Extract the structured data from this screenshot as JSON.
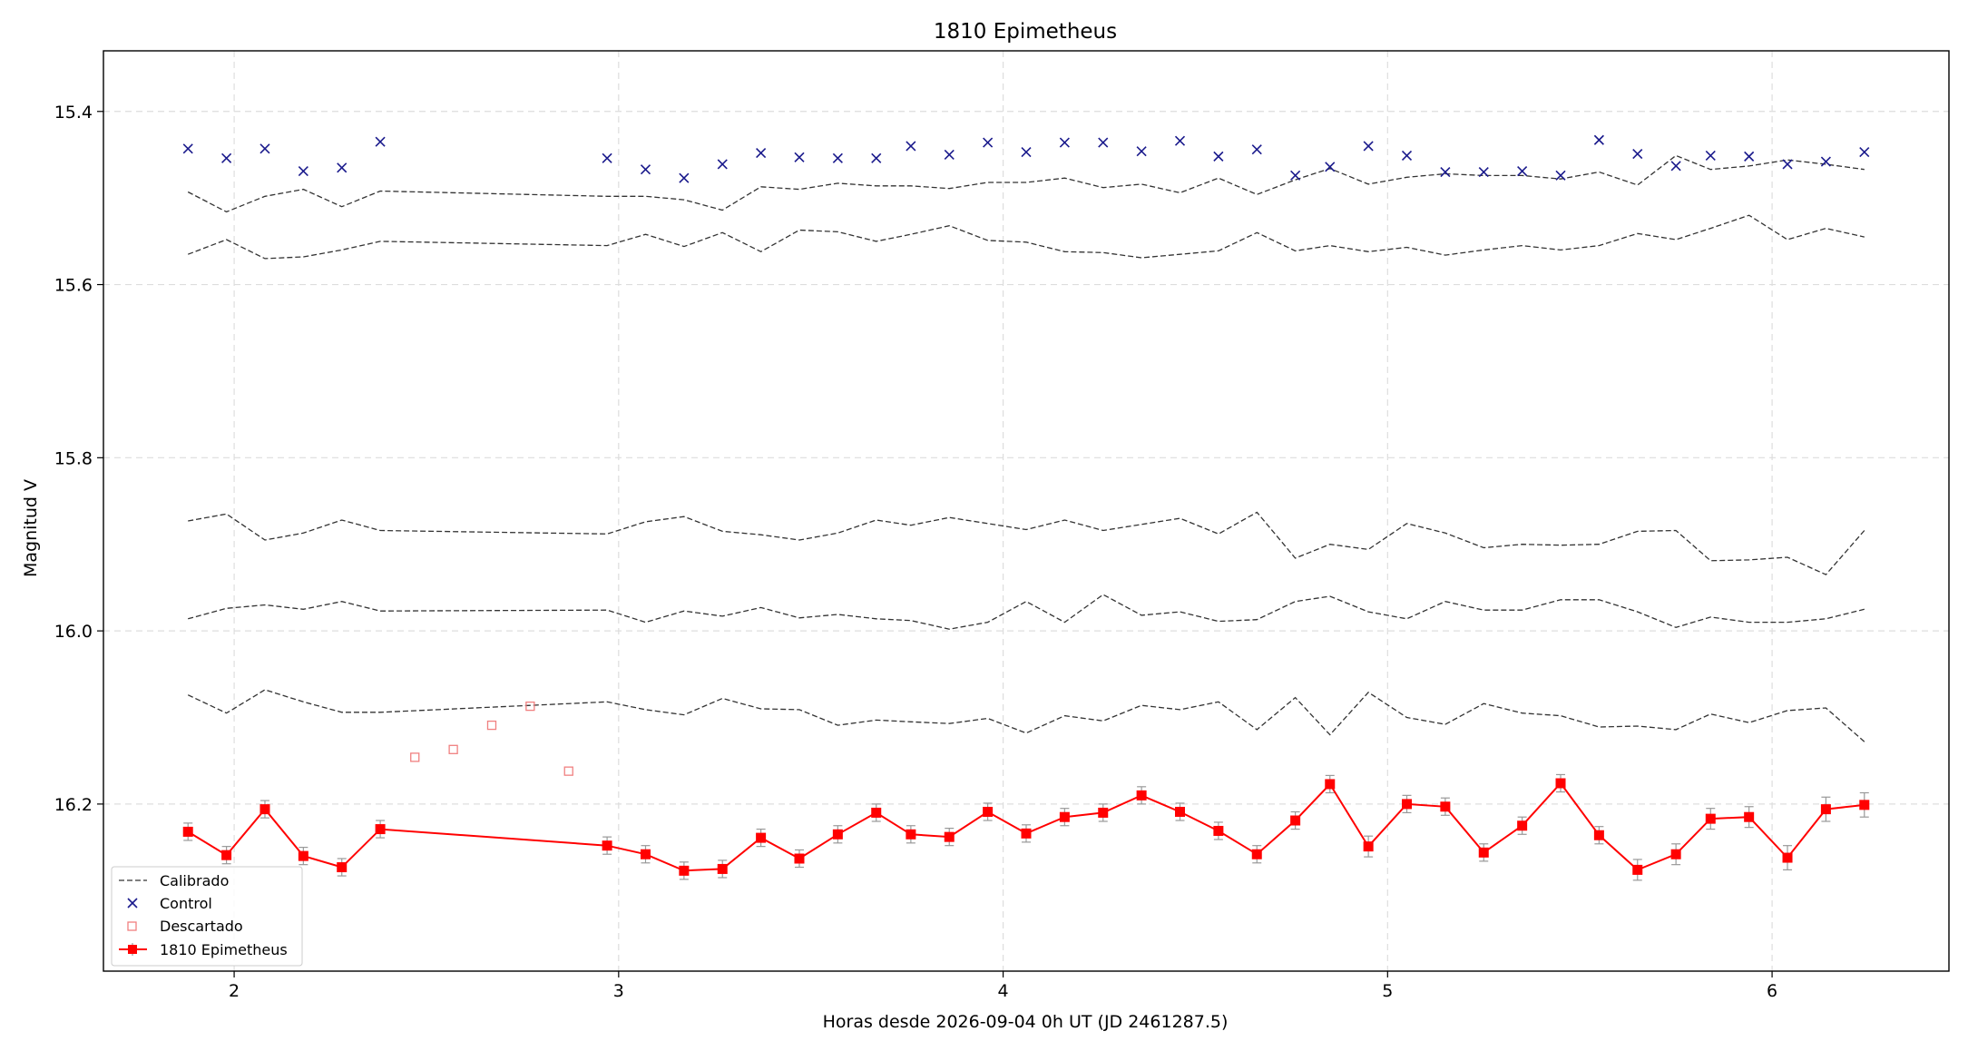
{
  "chart_data": {
    "type": "line",
    "title": "1810 Epimetheus",
    "xlabel": "Horas desde 2026-09-04 0h UT (JD 2461287.5)",
    "ylabel": "Magnitud V",
    "xlim": [
      1.66,
      6.46
    ],
    "ylim": [
      16.393,
      15.33
    ],
    "y_inverted": true,
    "grid": true,
    "legend_position": "lower-left",
    "x_ticks": [
      2,
      3,
      4,
      5,
      6
    ],
    "y_ticks": [
      15.4,
      15.6,
      15.8,
      16.0,
      16.2
    ],
    "x_tick_labels": [
      "2",
      "3",
      "4",
      "5",
      "6"
    ],
    "y_tick_labels": [
      "15.4",
      "15.6",
      "15.8",
      "16.0",
      "16.2"
    ],
    "legend": [
      {
        "label": "Calibrado",
        "style": "dashed"
      },
      {
        "label": "Control",
        "style": "x"
      },
      {
        "label": "Descartado",
        "style": "square-open"
      },
      {
        "label": "1810 Epimetheus",
        "style": "line-square"
      }
    ],
    "calibrado_x": [
      1.88,
      1.98,
      2.08,
      2.18,
      2.28,
      2.38,
      2.97,
      3.07,
      3.17,
      3.27,
      3.37,
      3.47,
      3.57,
      3.67,
      3.76,
      3.86,
      3.96,
      4.06,
      4.16,
      4.26,
      4.36,
      4.46,
      4.56,
      4.66,
      4.76,
      4.85,
      4.95,
      5.05,
      5.15,
      5.25,
      5.35,
      5.45,
      5.55,
      5.65,
      5.75,
      5.84,
      5.94,
      6.04,
      6.14,
      6.24
    ],
    "calibrado": [
      [
        15.493,
        15.516,
        15.498,
        15.49,
        15.51,
        15.492,
        15.498,
        15.498,
        15.502,
        15.514,
        15.487,
        15.49,
        15.483,
        15.486,
        15.486,
        15.489,
        15.482,
        15.482,
        15.477,
        15.488,
        15.484,
        15.494,
        15.477,
        15.496,
        15.479,
        15.466,
        15.484,
        15.476,
        15.472,
        15.474,
        15.474,
        15.478,
        15.47,
        15.485,
        15.451,
        15.467,
        15.463,
        15.456,
        15.461,
        15.467
      ],
      [
        15.565,
        15.548,
        15.57,
        15.568,
        15.56,
        15.55,
        15.555,
        15.542,
        15.556,
        15.54,
        15.562,
        15.537,
        15.539,
        15.55,
        15.542,
        15.532,
        15.549,
        15.551,
        15.562,
        15.563,
        15.569,
        15.565,
        15.561,
        15.54,
        15.561,
        15.555,
        15.562,
        15.557,
        15.566,
        15.56,
        15.555,
        15.56,
        15.555,
        15.541,
        15.548,
        15.535,
        15.52,
        15.548,
        15.535,
        15.545
      ],
      [
        15.873,
        15.865,
        15.895,
        15.887,
        15.872,
        15.884,
        15.888,
        15.874,
        15.868,
        15.885,
        15.889,
        15.895,
        15.887,
        15.872,
        15.878,
        15.869,
        15.876,
        15.883,
        15.872,
        15.884,
        15.877,
        15.87,
        15.888,
        15.863,
        15.916,
        15.9,
        15.906,
        15.876,
        15.887,
        15.904,
        15.9,
        15.901,
        15.9,
        15.885,
        15.884,
        15.919,
        15.918,
        15.915,
        15.935,
        15.884
      ],
      [
        15.986,
        15.974,
        15.97,
        15.975,
        15.966,
        15.977,
        15.976,
        15.99,
        15.977,
        15.983,
        15.973,
        15.985,
        15.981,
        15.986,
        15.988,
        15.998,
        15.99,
        15.966,
        15.99,
        15.958,
        15.982,
        15.978,
        15.989,
        15.987,
        15.966,
        15.96,
        15.978,
        15.986,
        15.966,
        15.976,
        15.976,
        15.964,
        15.964,
        15.978,
        15.996,
        15.984,
        15.99,
        15.99,
        15.986,
        15.975
      ],
      [
        16.074,
        16.095,
        16.068,
        16.082,
        16.094,
        16.094,
        16.082,
        16.091,
        16.097,
        16.078,
        16.09,
        16.091,
        16.109,
        16.103,
        16.105,
        16.107,
        16.101,
        16.118,
        16.098,
        16.104,
        16.086,
        16.091,
        16.082,
        16.114,
        16.077,
        16.12,
        16.071,
        16.1,
        16.108,
        16.084,
        16.095,
        16.098,
        16.111,
        16.11,
        16.114,
        16.096,
        16.106,
        16.092,
        16.089,
        16.128
      ]
    ],
    "control_x": [
      1.88,
      1.98,
      2.08,
      2.18,
      2.28,
      2.38,
      2.97,
      3.07,
      3.17,
      3.27,
      3.37,
      3.47,
      3.57,
      3.67,
      3.76,
      3.86,
      3.96,
      4.06,
      4.16,
      4.26,
      4.36,
      4.46,
      4.56,
      4.66,
      4.76,
      4.85,
      4.95,
      5.05,
      5.15,
      5.25,
      5.35,
      5.45,
      5.55,
      5.65,
      5.75,
      5.84,
      5.94,
      6.04,
      6.14,
      6.24
    ],
    "control": [
      15.443,
      15.454,
      15.443,
      15.469,
      15.465,
      15.435,
      15.454,
      15.467,
      15.477,
      15.461,
      15.448,
      15.453,
      15.454,
      15.454,
      15.44,
      15.45,
      15.436,
      15.447,
      15.436,
      15.436,
      15.446,
      15.434,
      15.452,
      15.444,
      15.474,
      15.464,
      15.44,
      15.451,
      15.47,
      15.47,
      15.469,
      15.474,
      15.433,
      15.449,
      15.463,
      15.451,
      15.452,
      15.461,
      15.458,
      15.447
    ],
    "descartado_x": [
      2.47,
      2.57,
      2.67,
      2.77,
      2.87
    ],
    "descartado": [
      16.146,
      16.137,
      16.109,
      16.087,
      16.162
    ],
    "asteroid_x": [
      1.88,
      1.98,
      2.08,
      2.18,
      2.28,
      2.38,
      2.97,
      3.07,
      3.17,
      3.27,
      3.37,
      3.47,
      3.57,
      3.67,
      3.76,
      3.86,
      3.96,
      4.06,
      4.16,
      4.26,
      4.36,
      4.46,
      4.56,
      4.66,
      4.76,
      4.85,
      4.95,
      5.05,
      5.15,
      5.25,
      5.35,
      5.45,
      5.55,
      5.65,
      5.75,
      5.84,
      5.94,
      6.04,
      6.14,
      6.24
    ],
    "asteroid": [
      16.232,
      16.259,
      16.206,
      16.26,
      16.273,
      16.229,
      16.248,
      16.258,
      16.277,
      16.275,
      16.239,
      16.263,
      16.235,
      16.21,
      16.235,
      16.238,
      16.209,
      16.234,
      16.215,
      16.21,
      16.19,
      16.209,
      16.231,
      16.258,
      16.219,
      16.177,
      16.249,
      16.2,
      16.203,
      16.256,
      16.225,
      16.176,
      16.236,
      16.276,
      16.258,
      16.217,
      16.215,
      16.262,
      16.206,
      16.201
    ],
    "asteroid_err": [
      0.01,
      0.01,
      0.01,
      0.01,
      0.01,
      0.01,
      0.01,
      0.01,
      0.01,
      0.01,
      0.01,
      0.01,
      0.01,
      0.01,
      0.01,
      0.01,
      0.01,
      0.01,
      0.01,
      0.01,
      0.01,
      0.01,
      0.01,
      0.01,
      0.01,
      0.01,
      0.012,
      0.01,
      0.01,
      0.01,
      0.01,
      0.01,
      0.01,
      0.012,
      0.012,
      0.012,
      0.012,
      0.014,
      0.014,
      0.014
    ]
  }
}
